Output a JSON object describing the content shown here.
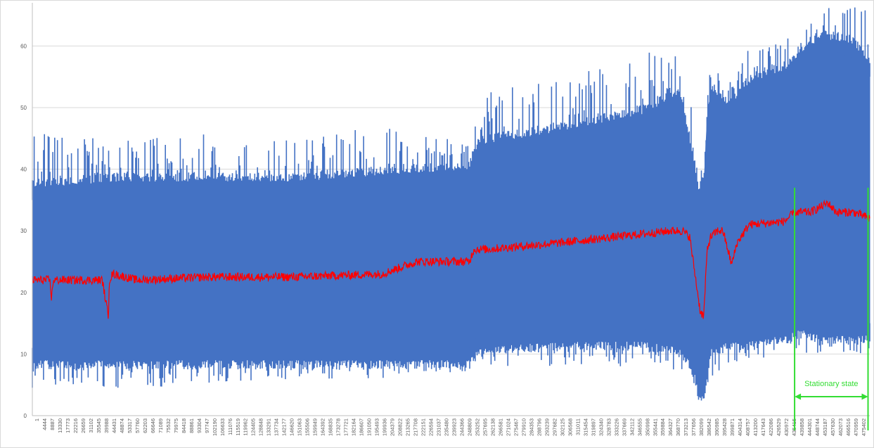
{
  "chart_data": {
    "type": "line",
    "title": "",
    "xlabel": "",
    "ylabel": "",
    "ylim": [
      0,
      67
    ],
    "y_ticks": [
      0,
      10,
      20,
      30,
      40,
      50,
      60
    ],
    "y_tick_labels": [
      "0",
      "10",
      "20",
      "30",
      "40",
      "50",
      "60"
    ],
    "x_range": [
      1,
      479000
    ],
    "x_tick_labels": [
      "1",
      "4444",
      "8887",
      "13330",
      "17773",
      "22216",
      "26659",
      "31102",
      "35545",
      "39988",
      "44431",
      "48874",
      "53317",
      "57760",
      "62203",
      "66646",
      "71089",
      "75532",
      "79975",
      "84418",
      "88861",
      "93304",
      "97747",
      "102190",
      "106633",
      "111076",
      "115519",
      "119962",
      "124405",
      "128848",
      "133291",
      "137734",
      "142177",
      "146620",
      "151063",
      "155506",
      "159949",
      "164392",
      "168835",
      "173278",
      "177721",
      "182164",
      "186607",
      "191050",
      "195493",
      "199936",
      "204379",
      "208822",
      "213265",
      "217708",
      "222151",
      "226594",
      "231037",
      "235480",
      "239923",
      "244366",
      "248809",
      "253252",
      "257695",
      "262138",
      "266581",
      "271024",
      "275467",
      "279910",
      "284353",
      "288796",
      "293239",
      "297682",
      "302125",
      "306568",
      "311011",
      "315454",
      "319897",
      "324340",
      "328783",
      "333226",
      "337669",
      "342112",
      "346555",
      "350998",
      "355441",
      "359884",
      "364327",
      "368770",
      "373213",
      "377656",
      "382099",
      "386542",
      "390985",
      "395428",
      "399871",
      "404314",
      "408757",
      "413200",
      "417643",
      "422086",
      "426529",
      "430972",
      "435415",
      "439858",
      "444301",
      "448744",
      "453187",
      "457630",
      "462073",
      "466516",
      "470959",
      "475402"
    ],
    "grid": true,
    "legend": "none",
    "series": [
      {
        "role": "raw-signal",
        "color": "#4472c4",
        "x": [
          1,
          50000,
          100000,
          150000,
          200000,
          250000,
          255000,
          300000,
          350000,
          370000,
          378000,
          381000,
          384000,
          386000,
          388000,
          392000,
          398000,
          410000,
          430000,
          440000,
          450000,
          460000,
          470000,
          479000
        ],
        "upper": [
          37,
          38,
          38,
          38,
          39,
          40,
          44,
          46,
          49,
          52,
          42,
          36,
          38,
          48,
          53,
          52,
          50,
          54,
          56,
          59,
          61,
          61,
          60,
          57
        ],
        "lower": [
          9,
          9,
          9,
          9,
          9,
          9,
          11,
          12,
          12,
          11,
          8,
          4,
          3,
          7,
          11,
          11,
          12,
          12,
          13,
          14,
          13,
          13,
          13,
          13
        ],
        "peak_max": [
          46,
          45,
          46,
          45,
          47,
          45,
          52,
          55,
          60,
          61,
          50,
          37,
          45,
          56,
          56,
          56,
          56,
          60,
          62,
          67,
          67,
          67,
          67,
          67
        ],
        "trough_min": [
          4,
          4,
          5,
          6,
          6,
          7,
          8,
          8,
          8,
          7,
          5,
          2,
          2,
          4,
          6,
          7,
          8,
          9,
          10,
          10,
          10,
          10,
          10,
          10
        ]
      },
      {
        "role": "mean",
        "color": "#ff0000",
        "x": [
          1,
          10000,
          11000,
          12000,
          20000,
          40000,
          43500,
          44000,
          46000,
          60000,
          100000,
          150000,
          200000,
          220000,
          250000,
          252500,
          260000,
          300000,
          350000,
          365000,
          372000,
          376000,
          378000,
          380000,
          382000,
          384000,
          386000,
          388000,
          392000,
          395000,
          400000,
          403000,
          410000,
          430000,
          436000,
          445000,
          455000,
          460000,
          470000,
          479000
        ],
        "values": [
          22,
          22,
          19,
          22,
          22,
          22,
          16,
          22,
          23,
          22,
          22.5,
          22.5,
          23,
          25,
          25,
          27,
          27,
          28,
          29.5,
          30,
          30,
          29,
          25,
          21,
          17,
          16,
          27,
          29,
          30,
          30,
          24.5,
          28,
          31,
          31.5,
          33,
          33,
          34.5,
          33,
          33,
          32
        ]
      }
    ],
    "annotations": [
      {
        "text": "Stationary state",
        "x_from": 436000,
        "x_to": 478000,
        "color": "#33dd33"
      }
    ]
  }
}
